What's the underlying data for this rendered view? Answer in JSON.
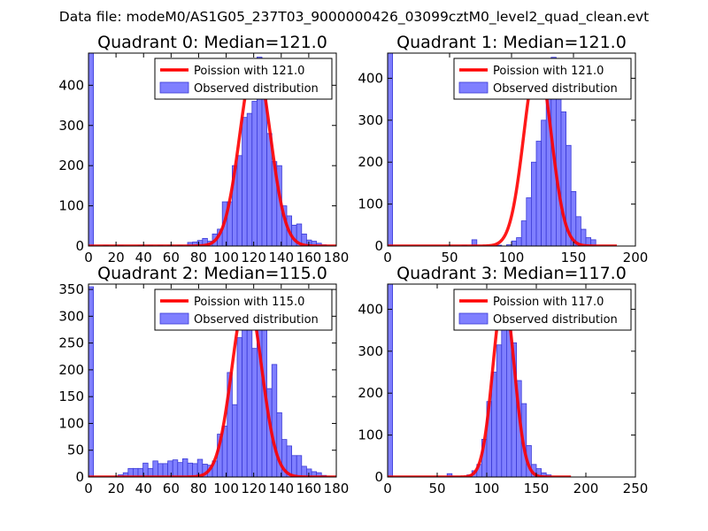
{
  "figure": {
    "suptitle": "Data file: modeM0/AS1G05_237T03_9000000426_03099cztM0_level2_quad_clean.evt",
    "colors": {
      "bars": "#7f7fff",
      "bar_edge": "#3a3ad6",
      "curve": "#ff0000",
      "axis": "#000000"
    }
  },
  "chart_data": [
    {
      "type": "bar",
      "title": "Quadrant 0: Median=121.0",
      "legend": {
        "curve": "Poission with 121.0",
        "bars": "Observed distribution",
        "position": "top-right"
      },
      "xlim": [
        0,
        180
      ],
      "ylim": [
        0,
        480
      ],
      "xticks": [
        0,
        20,
        40,
        60,
        80,
        100,
        120,
        140,
        160,
        180
      ],
      "yticks": [
        0,
        100,
        200,
        300,
        400
      ],
      "bin_width": 3.6,
      "bins": [
        [
          0,
          480
        ],
        [
          10.8,
          2
        ],
        [
          21.6,
          2
        ],
        [
          36,
          2
        ],
        [
          43.2,
          2
        ],
        [
          50.4,
          2
        ],
        [
          57.6,
          2
        ],
        [
          64.8,
          2
        ],
        [
          72,
          9
        ],
        [
          75.6,
          10
        ],
        [
          79.2,
          14
        ],
        [
          82.8,
          19
        ],
        [
          86.4,
          12
        ],
        [
          90,
          30
        ],
        [
          93.6,
          42
        ],
        [
          97.2,
          110
        ],
        [
          100.8,
          110
        ],
        [
          104.4,
          200
        ],
        [
          108,
          225
        ],
        [
          111.6,
          320
        ],
        [
          115.2,
          330
        ],
        [
          118.8,
          360
        ],
        [
          122.4,
          470
        ],
        [
          126,
          415
        ],
        [
          129.6,
          280
        ],
        [
          133.2,
          210
        ],
        [
          136.8,
          200
        ],
        [
          140.4,
          100
        ],
        [
          144,
          75
        ],
        [
          147.6,
          52
        ],
        [
          151.2,
          55
        ],
        [
          154.8,
          30
        ],
        [
          158.4,
          15
        ],
        [
          162,
          12
        ],
        [
          165.6,
          7
        ],
        [
          169.2,
          3
        ]
      ],
      "curve": {
        "mean": 121,
        "sd": 11,
        "peak": 462,
        "x": [
          0,
          76,
          85,
          92,
          100,
          106,
          112,
          117,
          121,
          125,
          130,
          136,
          142,
          150,
          158,
          175
        ],
        "y": [
          0,
          0,
          10,
          45,
          120,
          210,
          330,
          420,
          462,
          430,
          340,
          210,
          110,
          38,
          8,
          0
        ]
      }
    },
    {
      "type": "bar",
      "title": "Quadrant 1: Median=121.0",
      "legend": {
        "curve": "Poission with 121.0",
        "bars": "Observed distribution",
        "position": "top-right"
      },
      "xlim": [
        0,
        200
      ],
      "ylim": [
        0,
        460
      ],
      "xticks": [
        0,
        50,
        100,
        150,
        200
      ],
      "yticks": [
        0,
        100,
        200,
        300,
        400
      ],
      "bin_width": 4,
      "bins": [
        [
          0,
          460
        ],
        [
          60,
          2
        ],
        [
          68,
          15
        ],
        [
          88,
          2
        ],
        [
          96,
          3
        ],
        [
          100,
          12
        ],
        [
          104,
          20
        ],
        [
          108,
          60
        ],
        [
          112,
          115
        ],
        [
          116,
          200
        ],
        [
          120,
          250
        ],
        [
          124,
          300
        ],
        [
          128,
          375
        ],
        [
          132,
          450
        ],
        [
          136,
          380
        ],
        [
          140,
          320
        ],
        [
          144,
          240
        ],
        [
          148,
          130
        ],
        [
          152,
          70
        ],
        [
          156,
          40
        ],
        [
          160,
          20
        ],
        [
          164,
          15
        ]
      ],
      "curve": {
        "mean": 121,
        "sd": 11,
        "peak": 442,
        "x": [
          0,
          80,
          90,
          100,
          108,
          114,
          118,
          121,
          124,
          128,
          134,
          140,
          148,
          156,
          170,
          185
        ],
        "y": [
          0,
          0,
          8,
          50,
          150,
          290,
          390,
          442,
          415,
          340,
          190,
          95,
          25,
          5,
          0,
          0
        ]
      }
    },
    {
      "type": "bar",
      "title": "Quadrant 2: Median=115.0",
      "legend": {
        "curve": "Poission with 115.0",
        "bars": "Observed distribution",
        "position": "top-right"
      },
      "xlim": [
        0,
        180
      ],
      "ylim": [
        0,
        360
      ],
      "xticks": [
        0,
        20,
        40,
        60,
        80,
        100,
        120,
        140,
        160,
        180
      ],
      "yticks": [
        0,
        50,
        100,
        150,
        200,
        250,
        300,
        350
      ],
      "bin_width": 3.6,
      "bins": [
        [
          0,
          355
        ],
        [
          21.6,
          4
        ],
        [
          25.2,
          8
        ],
        [
          28.8,
          16
        ],
        [
          32.4,
          16
        ],
        [
          36,
          16
        ],
        [
          39.6,
          26
        ],
        [
          43.2,
          16
        ],
        [
          46.8,
          30
        ],
        [
          50.4,
          25
        ],
        [
          54,
          25
        ],
        [
          57.6,
          30
        ],
        [
          61.2,
          32
        ],
        [
          64.8,
          27
        ],
        [
          68.4,
          34
        ],
        [
          72,
          26
        ],
        [
          75.6,
          25
        ],
        [
          79.2,
          33
        ],
        [
          82.8,
          24
        ],
        [
          86.4,
          22
        ],
        [
          90,
          30
        ],
        [
          93.6,
          80
        ],
        [
          97.2,
          95
        ],
        [
          100.8,
          195
        ],
        [
          104.4,
          135
        ],
        [
          108,
          260
        ],
        [
          111.6,
          290
        ],
        [
          115.2,
          320
        ],
        [
          118.8,
          240
        ],
        [
          122.4,
          350
        ],
        [
          126,
          295
        ],
        [
          129.6,
          165
        ],
        [
          133.2,
          210
        ],
        [
          136.8,
          120
        ],
        [
          140.4,
          70
        ],
        [
          144,
          58
        ],
        [
          147.6,
          40
        ],
        [
          151.2,
          40
        ],
        [
          154.8,
          20
        ],
        [
          158.4,
          15
        ],
        [
          162,
          10
        ],
        [
          165.6,
          8
        ],
        [
          169.2,
          3
        ]
      ],
      "curve": {
        "mean": 115,
        "sd": 10.7,
        "peak": 340,
        "x": [
          0,
          76,
          84,
          90,
          96,
          102,
          106,
          110,
          115,
          120,
          126,
          132,
          138,
          146,
          154,
          175
        ],
        "y": [
          0,
          0,
          5,
          22,
          70,
          160,
          230,
          295,
          340,
          305,
          225,
          130,
          60,
          16,
          3,
          0
        ]
      }
    },
    {
      "type": "bar",
      "title": "Quadrant 3: Median=117.0",
      "legend": {
        "curve": "Poission with 117.0",
        "bars": "Observed distribution",
        "position": "top-right"
      },
      "xlim": [
        0,
        250
      ],
      "ylim": [
        0,
        460
      ],
      "xticks": [
        0,
        50,
        100,
        150,
        200,
        250
      ],
      "yticks": [
        0,
        100,
        200,
        300,
        400
      ],
      "bin_width": 5,
      "bins": [
        [
          0,
          460
        ],
        [
          60,
          8
        ],
        [
          65,
          2
        ],
        [
          70,
          2
        ],
        [
          80,
          5
        ],
        [
          85,
          15
        ],
        [
          90,
          30
        ],
        [
          95,
          90
        ],
        [
          100,
          180
        ],
        [
          105,
          250
        ],
        [
          110,
          315
        ],
        [
          115,
          360
        ],
        [
          120,
          420
        ],
        [
          125,
          320
        ],
        [
          130,
          230
        ],
        [
          135,
          175
        ],
        [
          140,
          75
        ],
        [
          145,
          30
        ],
        [
          150,
          20
        ],
        [
          155,
          10
        ],
        [
          160,
          5
        ]
      ],
      "curve": {
        "mean": 117,
        "sd": 10.8,
        "peak": 433,
        "x": [
          0,
          80,
          90,
          98,
          104,
          110,
          114,
          117,
          120,
          124,
          130,
          136,
          144,
          152,
          165,
          200
        ],
        "y": [
          0,
          0,
          10,
          90,
          200,
          320,
          400,
          433,
          410,
          330,
          200,
          95,
          20,
          4,
          0,
          0
        ]
      }
    }
  ]
}
